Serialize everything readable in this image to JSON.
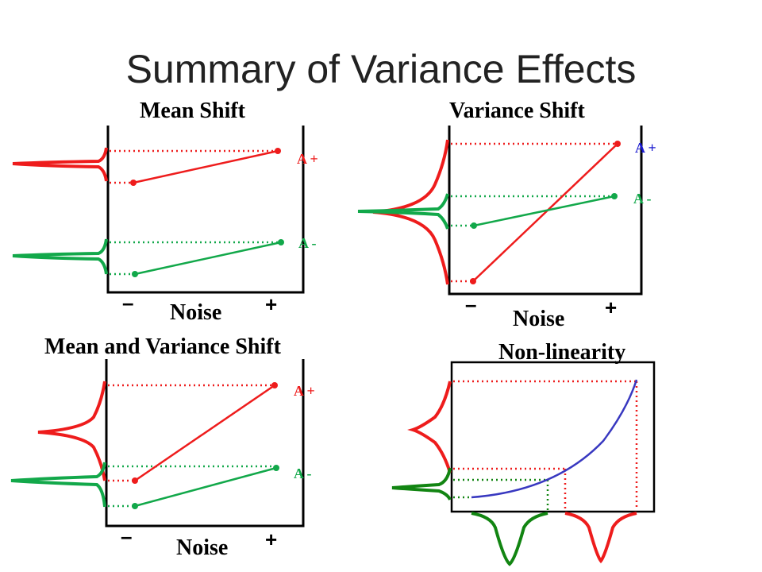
{
  "slide": {
    "title": "Summary of Variance Effects"
  },
  "panels": {
    "mean_shift": {
      "title": "Mean Shift",
      "xlabel": "Noise",
      "minus": "–",
      "plus": "+",
      "a_plus": "A +",
      "a_minus": "A -"
    },
    "variance_shift": {
      "title": "Variance Shift",
      "xlabel": "Noise",
      "minus": "–",
      "plus": "+",
      "a_plus": "A +",
      "a_minus": "A -"
    },
    "mean_and_variance_shift": {
      "title": "Mean and Variance Shift",
      "xlabel": "Noise",
      "minus": "–",
      "plus": "+",
      "a_plus": "A +",
      "a_minus": "A -"
    },
    "non_linearity": {
      "title": "Non-linearity"
    }
  },
  "colors": {
    "red": "#ee1c1c",
    "green": "#12a84a",
    "dark_green": "#128512",
    "blue": "#3838c0",
    "axis": "#000000",
    "a_plus_variance_shift": "#1a1ad0"
  }
}
